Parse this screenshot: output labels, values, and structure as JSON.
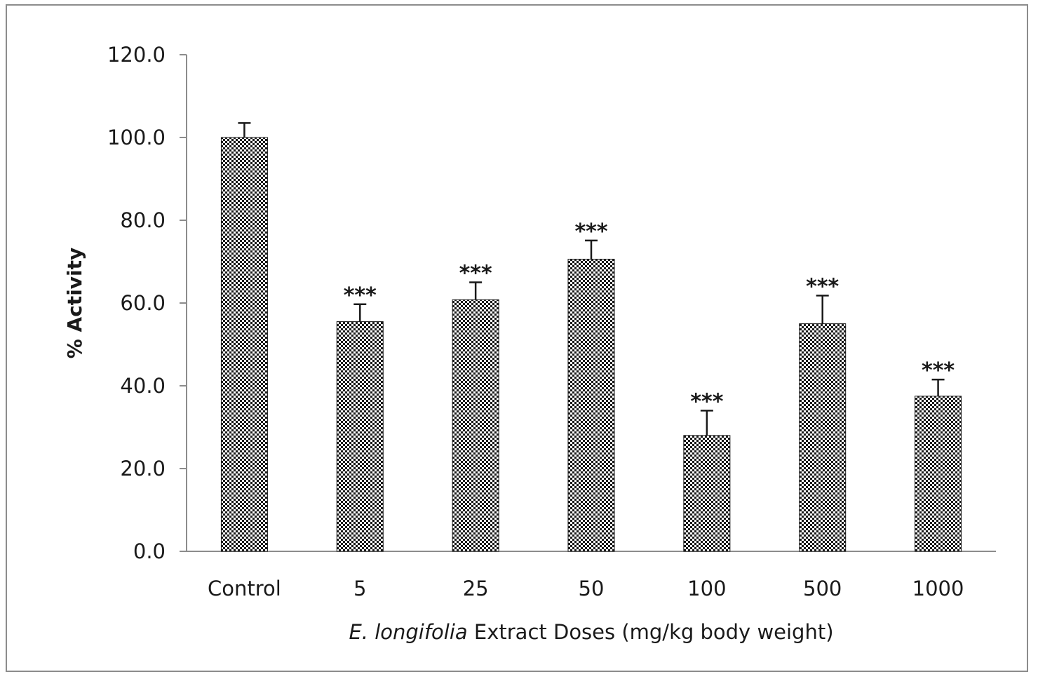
{
  "chart_data": {
    "type": "bar",
    "categories": [
      "Control",
      "5",
      "25",
      "50",
      "100",
      "500",
      "1000"
    ],
    "values": [
      100.0,
      55.5,
      60.8,
      70.6,
      28.0,
      55.0,
      37.5
    ],
    "errors": [
      3.5,
      4.2,
      4.2,
      4.5,
      6.0,
      6.8,
      4.0
    ],
    "significance": [
      "",
      "***",
      "***",
      "***",
      "***",
      "***",
      "***"
    ],
    "xlabel_italic": "E. longifolia",
    "xlabel_rest": " Extract Doses (mg/kg body weight)",
    "ylabel": "% Activity",
    "ylim": [
      0,
      120
    ],
    "yticks": [
      0,
      20,
      40,
      60,
      80,
      100,
      120
    ],
    "ytick_labels": [
      "0.0",
      "20.0",
      "40.0",
      "60.0",
      "80.0",
      "100.0",
      "120.0"
    ],
    "bar_fill": "#1a1a1a",
    "bar_pattern": "checkered",
    "grid": false,
    "legend": "none"
  }
}
